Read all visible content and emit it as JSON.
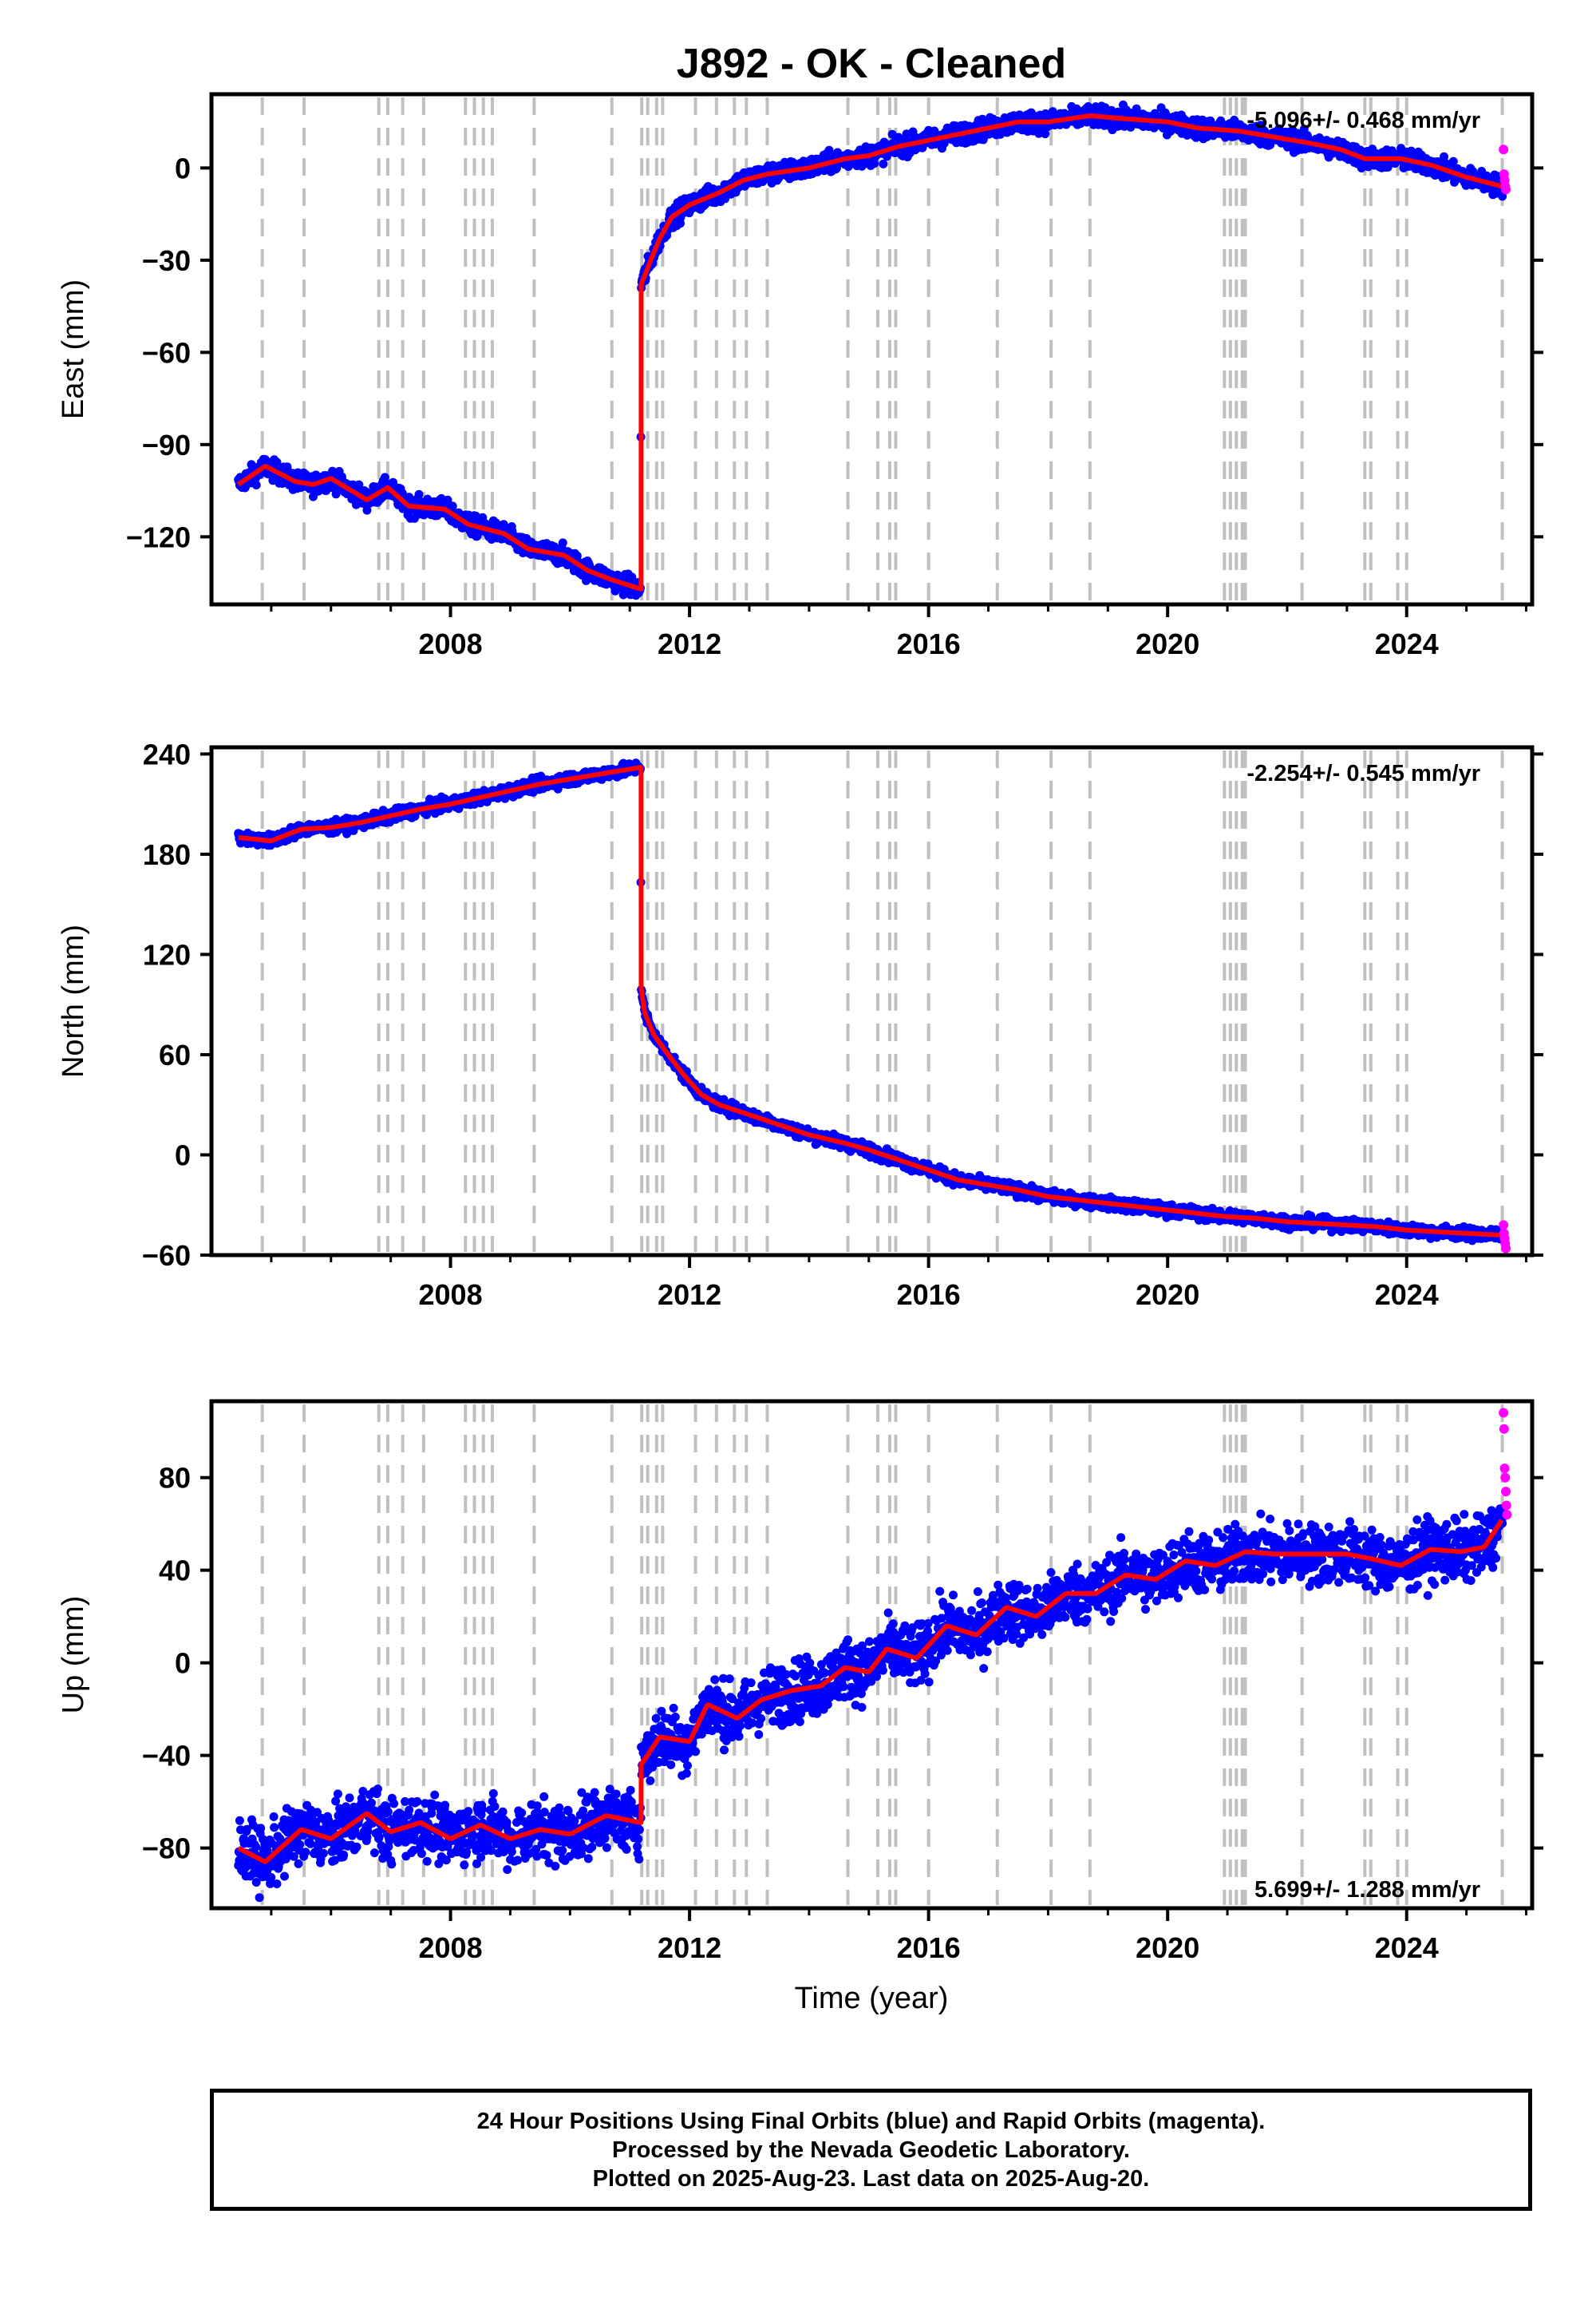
{
  "chart_data": {
    "type": "scatter",
    "title": "J892  - OK - Cleaned",
    "xlabel": "Time (year)",
    "xlim": [
      2004.0,
      2026.1
    ],
    "x_ticks": [
      2008,
      2012,
      2016,
      2020,
      2024
    ],
    "x_tick_labels": [
      "2008",
      "2012",
      "2016",
      "2020",
      "2024"
    ],
    "grid": false,
    "event_lines": [
      2004.85,
      2005.55,
      2006.8,
      2006.95,
      2007.2,
      2007.55,
      2008.25,
      2008.4,
      2008.55,
      2008.7,
      2009.4,
      2010.7,
      2011.2,
      2011.3,
      2011.45,
      2011.55,
      2012.1,
      2012.45,
      2012.75,
      2012.95,
      2013.3,
      2014.65,
      2015.15,
      2015.35,
      2015.45,
      2016.0,
      2017.15,
      2018.05,
      2018.7,
      2020.95,
      2021.05,
      2021.15,
      2021.25,
      2021.3,
      2022.25,
      2023.3,
      2023.4,
      2023.85,
      2024.0,
      2025.6
    ],
    "offset_epoch": 2011.19,
    "series": [
      {
        "name": "Final Orbits (blue)",
        "color": "#0000ff"
      },
      {
        "name": "Rapid Orbits (magenta)",
        "color": "#ff00ff"
      },
      {
        "color": "#ff0000"
      }
    ],
    "panels": [
      {
        "id": "east",
        "ylabel": "East (mm)",
        "ylim": [
          -142,
          24
        ],
        "y_ticks": [
          0,
          -30,
          -60,
          -90,
          -120
        ],
        "y_tick_labels": [
          "0",
          "−30",
          "−60",
          "−90",
          "−120"
        ],
        "rate_text": "-5.096+/- 0.468 mm/yr",
        "rate_position": "top-right",
        "noise_mm": 1.6,
        "model": [
          [
            2004.45,
            -103
          ],
          [
            2004.9,
            -97
          ],
          [
            2005.4,
            -102
          ],
          [
            2005.7,
            -103
          ],
          [
            2006.0,
            -101
          ],
          [
            2006.6,
            -108
          ],
          [
            2006.95,
            -104
          ],
          [
            2007.3,
            -110
          ],
          [
            2007.9,
            -111
          ],
          [
            2008.3,
            -116
          ],
          [
            2008.9,
            -119
          ],
          [
            2009.3,
            -124
          ],
          [
            2009.9,
            -126
          ],
          [
            2010.3,
            -131
          ],
          [
            2010.7,
            -134
          ],
          [
            2011.18,
            -137
          ],
          [
            2011.19,
            -38
          ],
          [
            2011.35,
            -30
          ],
          [
            2011.5,
            -23
          ],
          [
            2011.7,
            -16
          ],
          [
            2012.0,
            -12
          ],
          [
            2012.5,
            -8
          ],
          [
            2012.9,
            -4
          ],
          [
            2013.3,
            -2
          ],
          [
            2014.0,
            0
          ],
          [
            2014.6,
            3
          ],
          [
            2015.0,
            4
          ],
          [
            2015.5,
            7
          ],
          [
            2016.0,
            9
          ],
          [
            2016.5,
            11
          ],
          [
            2017.0,
            13
          ],
          [
            2017.5,
            15
          ],
          [
            2018.0,
            15
          ],
          [
            2018.7,
            17
          ],
          [
            2019.3,
            16
          ],
          [
            2020.0,
            15
          ],
          [
            2020.5,
            13
          ],
          [
            2021.2,
            12
          ],
          [
            2021.8,
            10
          ],
          [
            2022.4,
            8
          ],
          [
            2022.9,
            6
          ],
          [
            2023.3,
            3
          ],
          [
            2023.9,
            3
          ],
          [
            2024.4,
            1
          ],
          [
            2025.0,
            -3
          ],
          [
            2025.6,
            -6
          ]
        ],
        "rapid": [
          [
            2025.62,
            6
          ],
          [
            2025.63,
            -2
          ],
          [
            2025.64,
            -4
          ],
          [
            2025.65,
            -6
          ],
          [
            2025.66,
            -7
          ]
        ]
      },
      {
        "id": "north",
        "ylabel": "North (mm)",
        "ylim": [
          -60,
          244
        ],
        "y_ticks": [
          240,
          180,
          120,
          60,
          0,
          -60
        ],
        "y_tick_labels": [
          "240",
          "180",
          "120",
          "60",
          "0",
          "−60"
        ],
        "rate_text": "-2.254+/- 0.545 mm/yr",
        "rate_position": "top-right",
        "noise_mm": 1.8,
        "model": [
          [
            2004.45,
            190
          ],
          [
            2005.0,
            188
          ],
          [
            2005.5,
            195
          ],
          [
            2006.0,
            196
          ],
          [
            2006.5,
            199
          ],
          [
            2007.0,
            203
          ],
          [
            2007.5,
            207
          ],
          [
            2008.0,
            210
          ],
          [
            2008.5,
            214
          ],
          [
            2009.0,
            218
          ],
          [
            2009.5,
            222
          ],
          [
            2010.0,
            225
          ],
          [
            2010.5,
            228
          ],
          [
            2011.18,
            232
          ],
          [
            2011.19,
            100
          ],
          [
            2011.25,
            85
          ],
          [
            2011.4,
            72
          ],
          [
            2011.6,
            62
          ],
          [
            2011.9,
            48
          ],
          [
            2012.2,
            36
          ],
          [
            2012.5,
            30
          ],
          [
            2013.0,
            24
          ],
          [
            2013.5,
            18
          ],
          [
            2014.0,
            12
          ],
          [
            2014.6,
            7
          ],
          [
            2015.0,
            3
          ],
          [
            2015.5,
            -3
          ],
          [
            2016.0,
            -9
          ],
          [
            2016.5,
            -15
          ],
          [
            2017.0,
            -18
          ],
          [
            2017.5,
            -21
          ],
          [
            2018.0,
            -25
          ],
          [
            2018.5,
            -27
          ],
          [
            2019.0,
            -29
          ],
          [
            2019.5,
            -31
          ],
          [
            2020.0,
            -33
          ],
          [
            2020.5,
            -35
          ],
          [
            2021.0,
            -37
          ],
          [
            2021.5,
            -38
          ],
          [
            2022.0,
            -40
          ],
          [
            2022.5,
            -41
          ],
          [
            2023.0,
            -42
          ],
          [
            2023.5,
            -43
          ],
          [
            2024.0,
            -45
          ],
          [
            2024.5,
            -46
          ],
          [
            2025.0,
            -47
          ],
          [
            2025.6,
            -48
          ]
        ],
        "rapid": [
          [
            2025.62,
            -42
          ],
          [
            2025.63,
            -47
          ],
          [
            2025.64,
            -50
          ],
          [
            2025.65,
            -53
          ],
          [
            2025.66,
            -56
          ]
        ]
      },
      {
        "id": "up",
        "ylabel": "Up (mm)",
        "ylim": [
          -106,
          113
        ],
        "y_ticks": [
          80,
          40,
          0,
          -40,
          -80
        ],
        "y_tick_labels": [
          "80",
          "40",
          "0",
          "−40",
          "−80"
        ],
        "rate_text": "5.699+/- 1.288 mm/yr",
        "rate_position": "bottom-right",
        "noise_mm": 6.5,
        "model": [
          [
            2004.45,
            -80
          ],
          [
            2004.9,
            -86
          ],
          [
            2005.5,
            -72
          ],
          [
            2006.0,
            -76
          ],
          [
            2006.6,
            -65
          ],
          [
            2007.0,
            -73
          ],
          [
            2007.5,
            -69
          ],
          [
            2008.0,
            -76
          ],
          [
            2008.5,
            -70
          ],
          [
            2009.0,
            -76
          ],
          [
            2009.5,
            -72
          ],
          [
            2010.0,
            -74
          ],
          [
            2010.6,
            -66
          ],
          [
            2011.18,
            -69
          ],
          [
            2011.19,
            -44
          ],
          [
            2011.5,
            -32
          ],
          [
            2012.0,
            -34
          ],
          [
            2012.3,
            -18
          ],
          [
            2012.8,
            -24
          ],
          [
            2013.2,
            -16
          ],
          [
            2013.7,
            -12
          ],
          [
            2014.2,
            -10
          ],
          [
            2014.6,
            -2
          ],
          [
            2015.0,
            -4
          ],
          [
            2015.3,
            6
          ],
          [
            2015.8,
            2
          ],
          [
            2016.3,
            16
          ],
          [
            2016.8,
            12
          ],
          [
            2017.3,
            24
          ],
          [
            2017.8,
            20
          ],
          [
            2018.3,
            30
          ],
          [
            2018.8,
            30
          ],
          [
            2019.3,
            38
          ],
          [
            2019.8,
            36
          ],
          [
            2020.3,
            44
          ],
          [
            2020.8,
            42
          ],
          [
            2021.3,
            48
          ],
          [
            2021.8,
            47
          ],
          [
            2022.2,
            47
          ],
          [
            2022.6,
            47
          ],
          [
            2023.0,
            47
          ],
          [
            2023.4,
            45
          ],
          [
            2023.9,
            42
          ],
          [
            2024.4,
            49
          ],
          [
            2024.9,
            48
          ],
          [
            2025.3,
            50
          ],
          [
            2025.6,
            62
          ]
        ],
        "rapid": [
          [
            2025.62,
            108
          ],
          [
            2025.63,
            101
          ],
          [
            2025.64,
            84
          ],
          [
            2025.65,
            80
          ],
          [
            2025.66,
            74
          ],
          [
            2025.67,
            68
          ],
          [
            2025.68,
            64
          ]
        ]
      }
    ]
  },
  "footer": {
    "line1": "24 Hour Positions Using Final Orbits (blue) and Rapid Orbits (magenta).",
    "line2": "Processed by the Nevada Geodetic Laboratory.",
    "line3": "Plotted on 2025-Aug-23. Last data on 2025-Aug-20."
  }
}
